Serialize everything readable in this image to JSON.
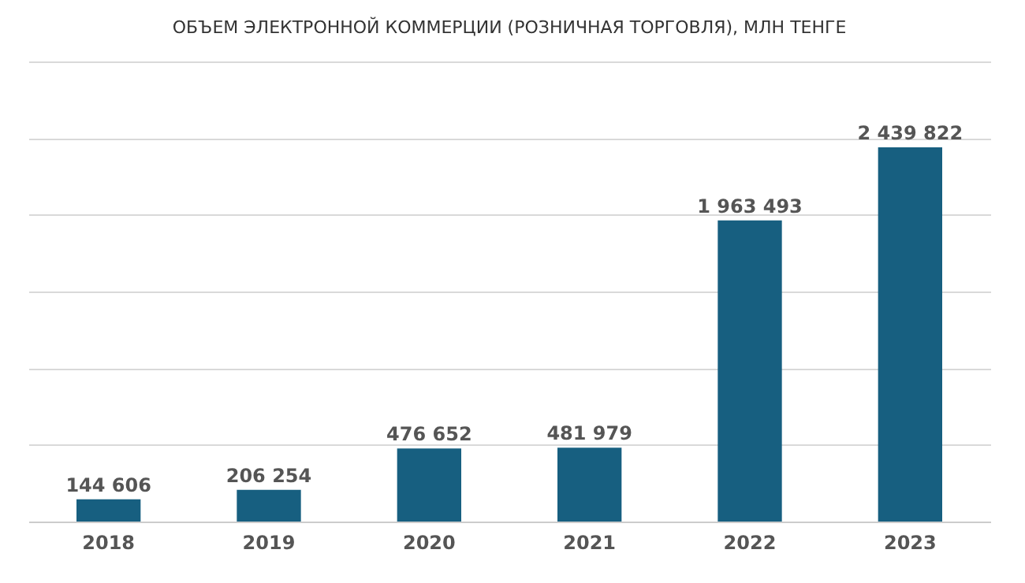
{
  "chart_data": {
    "type": "bar",
    "title": "ОБЪЕМ ЭЛЕКТРОННОЙ КОММЕРЦИИ (РОЗНИЧНАЯ ТОРГОВЛЯ), МЛН ТЕНГЕ",
    "categories": [
      "2018",
      "2019",
      "2020",
      "2021",
      "2022",
      "2023"
    ],
    "values": [
      144606,
      206254,
      476652,
      481979,
      1963493,
      2439822
    ],
    "value_labels": [
      "144 606",
      "206 254",
      "476 652",
      "481 979",
      "1 963 493",
      "2 439 822"
    ],
    "color": "#175f80",
    "ylim": [
      0,
      3000000
    ],
    "yticks": [
      {
        "value": 0,
        "label": null
      },
      {
        "value": 500000,
        "label": null
      },
      {
        "value": 1000000,
        "label": null
      },
      {
        "value": 1500000,
        "label": null
      },
      {
        "value": 2000000,
        "label": null
      },
      {
        "value": 2500000,
        "label": null
      },
      {
        "value": 3000000,
        "label": null
      }
    ],
    "grid": "y",
    "tick_labels": "x"
  }
}
